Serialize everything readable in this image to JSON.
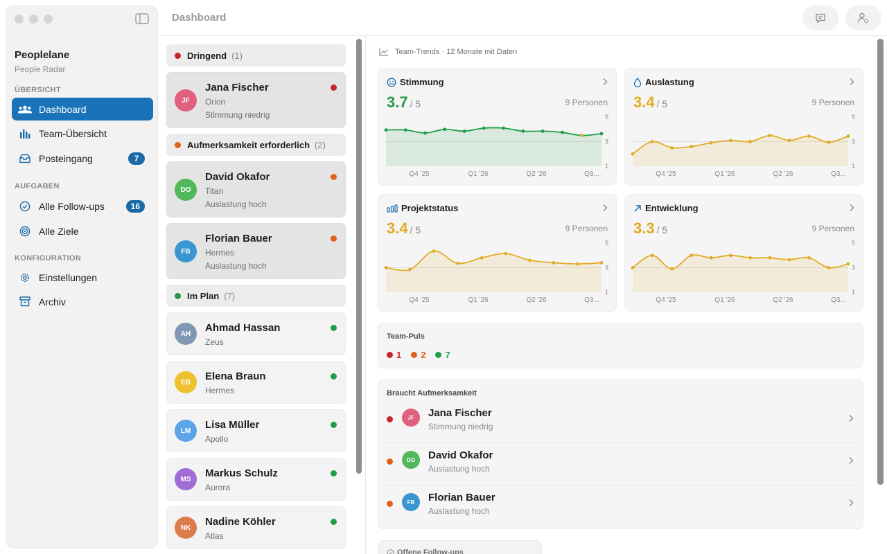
{
  "header": {
    "title": "Dashboard"
  },
  "sidebar": {
    "app_name": "Peoplelane",
    "app_sub": "People Radar",
    "sections": {
      "overview": "ÜBERSICHT",
      "tasks": "AUFGABEN",
      "config": "KONFIGURATION"
    },
    "items": {
      "dashboard": "Dashboard",
      "team": "Team-Übersicht",
      "inbox": "Posteingang",
      "inbox_badge": "7",
      "followups": "Alle Follow-ups",
      "followups_badge": "16",
      "goals": "Alle Ziele",
      "settings": "Einstellungen",
      "archive": "Archiv"
    }
  },
  "people_list": {
    "groups": {
      "urgent": {
        "label": "Dringend",
        "count": "(1)",
        "color": "#c9262b"
      },
      "attention": {
        "label": "Aufmerksamkeit erforderlich",
        "count": "(2)",
        "color": "#e0621a"
      },
      "on_plan": {
        "label": "Im Plan",
        "count": "(7)",
        "color": "#1f9d47"
      }
    },
    "people": [
      {
        "initials": "JF",
        "name": "Jana Fischer",
        "team": "Orion",
        "status": "Stimmung niedrig",
        "avatar_color": "#e0607e",
        "dot": "#c9262b"
      },
      {
        "initials": "DO",
        "name": "David Okafor",
        "team": "Titan",
        "status": "Auslastung hoch",
        "avatar_color": "#52b85c",
        "dot": "#e0621a"
      },
      {
        "initials": "FB",
        "name": "Florian Bauer",
        "team": "Hermes",
        "status": "Auslastung hoch",
        "avatar_color": "#3a96d0",
        "dot": "#e0621a"
      },
      {
        "initials": "AH",
        "name": "Ahmad Hassan",
        "team": "Zeus",
        "status": "",
        "avatar_color": "#8097b4",
        "dot": "#1f9d47"
      },
      {
        "initials": "EB",
        "name": "Elena Braun",
        "team": "Hermes",
        "status": "",
        "avatar_color": "#eec12f",
        "dot": "#1f9d47"
      },
      {
        "initials": "LM",
        "name": "Lisa Müller",
        "team": "Apollo",
        "status": "",
        "avatar_color": "#5ca4e8",
        "dot": "#1f9d47"
      },
      {
        "initials": "MS",
        "name": "Markus Schulz",
        "team": "Aurora",
        "status": "",
        "avatar_color": "#a26cd6",
        "dot": "#1f9d47"
      },
      {
        "initials": "NK",
        "name": "Nadine Köhler",
        "team": "Atlas",
        "status": "",
        "avatar_color": "#dc7c4c",
        "dot": "#1f9d47"
      }
    ]
  },
  "main": {
    "trends_label": "Team-Trends · 12 Monate mit Daten",
    "puls": {
      "title": "Team-Puls",
      "urgent": "1",
      "attention": "2",
      "on_plan": "7"
    },
    "attention": {
      "title": "Braucht Aufmerksamkeit",
      "rows": [
        {
          "initials": "JF",
          "name": "Jana Fischer",
          "status": "Stimmung niedrig",
          "avatar_color": "#e0607e",
          "dot": "#c9262b"
        },
        {
          "initials": "DO",
          "name": "David Okafor",
          "status": "Auslastung hoch",
          "avatar_color": "#52b85c",
          "dot": "#e0621a"
        },
        {
          "initials": "FB",
          "name": "Florian Bauer",
          "status": "Auslastung hoch",
          "avatar_color": "#3a96d0",
          "dot": "#e0621a"
        }
      ]
    },
    "offene_label": "Offene Follow-ups"
  },
  "chart_data": [
    {
      "type": "area",
      "title": "Stimmung",
      "score": "3.7",
      "scale": "/ 5",
      "people": "9 Personen",
      "color": "#1f9d47",
      "ylim": [
        1,
        5
      ],
      "y_ticks": [
        "5",
        "3",
        "1"
      ],
      "x_ticks": [
        "Q4 '25",
        "Q1 '26",
        "Q2 '26",
        "Q3..."
      ],
      "values": [
        3.95,
        3.95,
        3.7,
        4.0,
        3.85,
        4.1,
        4.1,
        3.85,
        3.85,
        3.75,
        3.5,
        3.65
      ],
      "highlight_index": 10
    },
    {
      "type": "area",
      "title": "Auslastung",
      "score": "3.4",
      "scale": "/ 5",
      "people": "9 Personen",
      "color": "#e3ab25",
      "ylim": [
        1,
        5
      ],
      "y_ticks": [
        "5",
        "3",
        "1"
      ],
      "x_ticks": [
        "Q4 '25",
        "Q1 '26",
        "Q2 '26",
        "Q3..."
      ],
      "values": [
        2.0,
        3.0,
        2.5,
        2.6,
        2.9,
        3.1,
        3.0,
        3.5,
        3.1,
        3.45,
        2.95,
        3.45
      ],
      "highlight_index": null
    },
    {
      "type": "area",
      "title": "Projektstatus",
      "score": "3.4",
      "scale": "/ 5",
      "people": "9 Personen",
      "color": "#e3ab25",
      "ylim": [
        1,
        5
      ],
      "y_ticks": [
        "5",
        "3",
        "1"
      ],
      "x_ticks": [
        "Q4 '25",
        "Q1 '26",
        "Q2 '26",
        "Q3..."
      ],
      "values": [
        3.0,
        2.85,
        4.35,
        3.35,
        3.8,
        4.15,
        3.6,
        3.4,
        3.3,
        3.4
      ],
      "highlight_index": null
    },
    {
      "type": "area",
      "title": "Entwicklung",
      "score": "3.3",
      "scale": "/ 5",
      "people": "9 Personen",
      "color": "#e3ab25",
      "ylim": [
        1,
        5
      ],
      "y_ticks": [
        "5",
        "3",
        "1"
      ],
      "x_ticks": [
        "Q4 '25",
        "Q1 '26",
        "Q2 '26",
        "Q3..."
      ],
      "values": [
        3.0,
        4.0,
        2.9,
        4.0,
        3.8,
        4.0,
        3.8,
        3.8,
        3.65,
        3.8,
        3.0,
        3.3
      ],
      "highlight_index": null
    }
  ]
}
